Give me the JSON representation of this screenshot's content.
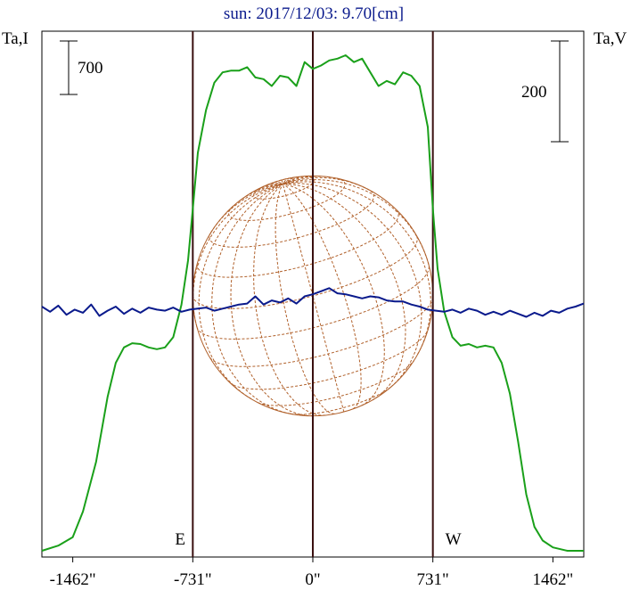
{
  "chart_data": {
    "type": "line",
    "title": "sun: 2017/12/03: 9.70[cm]",
    "left_axis_label": "Ta,I",
    "right_axis_label": "Ta,V",
    "left_scale_label": "700",
    "right_scale_label": "200",
    "x_tick_labels": [
      "-1462\"",
      "-731\"",
      "0\"",
      "731\"",
      "1462\""
    ],
    "x_ticks": [
      -1462,
      -731,
      0,
      731,
      1462
    ],
    "xlim": [
      -1650,
      1650
    ],
    "limb_markers": [
      {
        "label": "E",
        "x": -731
      },
      {
        "label": "W",
        "x": 731
      }
    ],
    "center_marker_x": 0,
    "series": [
      {
        "name": "I",
        "color": "#1aa01a",
        "x": [
          -1650,
          -1550,
          -1462,
          -1400,
          -1320,
          -1250,
          -1200,
          -1150,
          -1100,
          -1050,
          -1000,
          -950,
          -900,
          -850,
          -800,
          -760,
          -731,
          -700,
          -650,
          -600,
          -550,
          -500,
          -450,
          -400,
          -350,
          -300,
          -250,
          -200,
          -150,
          -100,
          -50,
          0,
          50,
          100,
          150,
          200,
          250,
          300,
          350,
          400,
          450,
          500,
          550,
          600,
          650,
          700,
          731,
          760,
          800,
          850,
          900,
          950,
          1000,
          1050,
          1100,
          1150,
          1200,
          1250,
          1300,
          1350,
          1400,
          1462,
          1550,
          1650
        ],
        "y": [
          0,
          30,
          80,
          230,
          520,
          900,
          1100,
          1190,
          1215,
          1210,
          1190,
          1180,
          1190,
          1250,
          1440,
          1700,
          2000,
          2330,
          2580,
          2740,
          2800,
          2810,
          2810,
          2830,
          2770,
          2760,
          2720,
          2780,
          2770,
          2720,
          2860,
          2820,
          2840,
          2870,
          2880,
          2900,
          2860,
          2880,
          2800,
          2720,
          2750,
          2730,
          2800,
          2780,
          2720,
          2480,
          2000,
          1650,
          1400,
          1250,
          1200,
          1210,
          1190,
          1200,
          1190,
          1100,
          920,
          640,
          330,
          140,
          60,
          20,
          0,
          0
        ],
        "y_unit": "relative"
      },
      {
        "name": "V",
        "color": "#0a1a8c",
        "x": [
          -1650,
          -1600,
          -1550,
          -1500,
          -1450,
          -1400,
          -1350,
          -1300,
          -1250,
          -1200,
          -1150,
          -1100,
          -1050,
          -1000,
          -950,
          -900,
          -850,
          -800,
          -750,
          -700,
          -650,
          -600,
          -550,
          -500,
          -450,
          -400,
          -350,
          -300,
          -250,
          -200,
          -150,
          -100,
          -50,
          0,
          50,
          100,
          150,
          200,
          250,
          300,
          350,
          400,
          450,
          500,
          550,
          600,
          650,
          700,
          750,
          800,
          850,
          900,
          950,
          1000,
          1050,
          1100,
          1150,
          1200,
          1250,
          1300,
          1350,
          1400,
          1450,
          1500,
          1550,
          1600,
          1650
        ],
        "y": [
          0,
          -5,
          1,
          -8,
          -3,
          -6,
          2,
          -9,
          -4,
          0,
          -7,
          -2,
          -6,
          -1,
          -3,
          -4,
          -1,
          -5,
          -3,
          -2,
          -1,
          -4,
          -2,
          0,
          2,
          3,
          10,
          2,
          6,
          4,
          8,
          3,
          10,
          12,
          15,
          18,
          13,
          12,
          10,
          8,
          10,
          9,
          6,
          5,
          5,
          2,
          0,
          -3,
          -4,
          -5,
          -3,
          -6,
          -2,
          -4,
          -8,
          -5,
          -8,
          -4,
          -7,
          -10,
          -6,
          -9,
          -4,
          -6,
          -2,
          0,
          3
        ],
        "y_unit": "relative"
      }
    ],
    "disk": {
      "center_x": 0,
      "radius_arcsec": 731,
      "grid_color": "#b0602a"
    },
    "colors": {
      "frame": "#000000",
      "markers": "#3a1010",
      "title": "#0a1a8c"
    }
  }
}
